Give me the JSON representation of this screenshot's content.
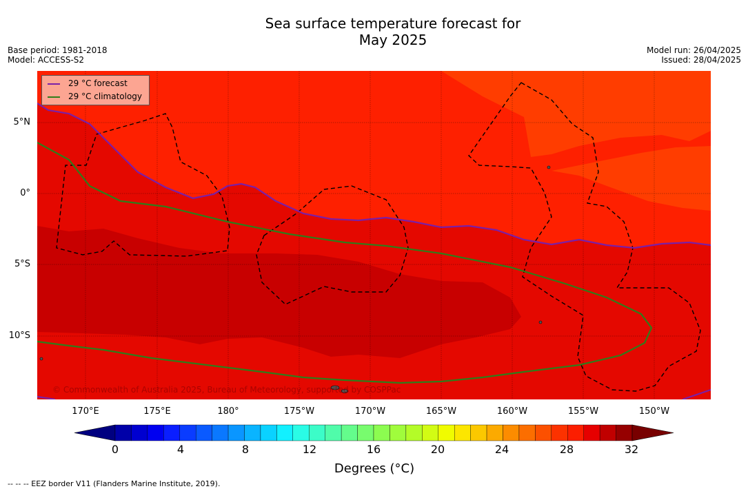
{
  "title_line1": "Sea surface temperature forecast for",
  "title_line2": "May 2025",
  "meta_left": {
    "base_period": "Base period: 1981-2018",
    "model": "Model: ACCESS-S2"
  },
  "meta_right": {
    "model_run": "Model run: 26/04/2025",
    "issued": "Issued: 28/04/2025"
  },
  "latitude_labels": [
    "5°N",
    "0°",
    "5°S",
    "10°S"
  ],
  "longitude_labels": [
    "170°E",
    "175°E",
    "180°",
    "175°W",
    "170°W",
    "165°W",
    "160°W",
    "155°W",
    "150°W"
  ],
  "legend": {
    "forecast_label": "29 °C  forecast",
    "climatology_label": "29 °C  climatology",
    "forecast_color": "#7a1fa8",
    "climatology_color": "#2e7d1a"
  },
  "copyright": "© Commonwealth of Australia 2025, Bureau of Meteorology, supported by COSPPac",
  "colorbar": {
    "tick_labels": [
      "0",
      "4",
      "8",
      "12",
      "16",
      "20",
      "24",
      "28",
      "32"
    ],
    "title": "Degrees (°C)",
    "colors": [
      "#000080",
      "#0000a8",
      "#0000d0",
      "#0000f0",
      "#0a1eff",
      "#0a3cff",
      "#0a5aff",
      "#0a78ff",
      "#0a96ff",
      "#0ab4ff",
      "#0ad2ff",
      "#12f0ff",
      "#2afce6",
      "#3cfcc8",
      "#50fcaa",
      "#64fc8c",
      "#78fc6e",
      "#8cfc50",
      "#a0fc3c",
      "#b4fc28",
      "#d2fc14",
      "#f0fc00",
      "#fce600",
      "#fcc800",
      "#fcaa00",
      "#fc8c00",
      "#fc6e00",
      "#fc5000",
      "#fc3200",
      "#fc1e00",
      "#e60000",
      "#c00000",
      "#960000",
      "#780000"
    ]
  },
  "map_colors": {
    "warm_28": "#fe2000",
    "warm_27": "#ff3d00",
    "warm_29": "#e40800",
    "warm_30": "#c80000"
  },
  "footer": "--  --  -- EEZ border V11 (Flanders Marine Institute, 2019)."
}
